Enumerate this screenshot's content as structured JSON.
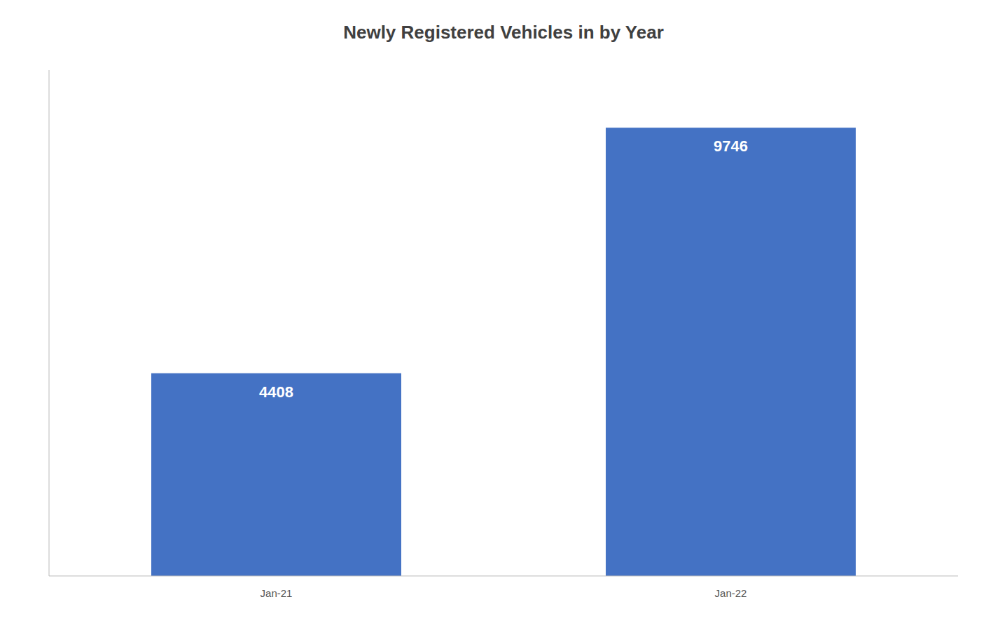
{
  "chart_data": {
    "type": "bar",
    "title": "Newly Registered Vehicles in by Year",
    "categories": [
      "Jan-21",
      "Jan-22"
    ],
    "values": [
      4408,
      9746
    ],
    "color": "#4472C4",
    "ylim": [
      0,
      11000
    ],
    "grid": false,
    "data_labels": true,
    "tick_labels": "x"
  }
}
